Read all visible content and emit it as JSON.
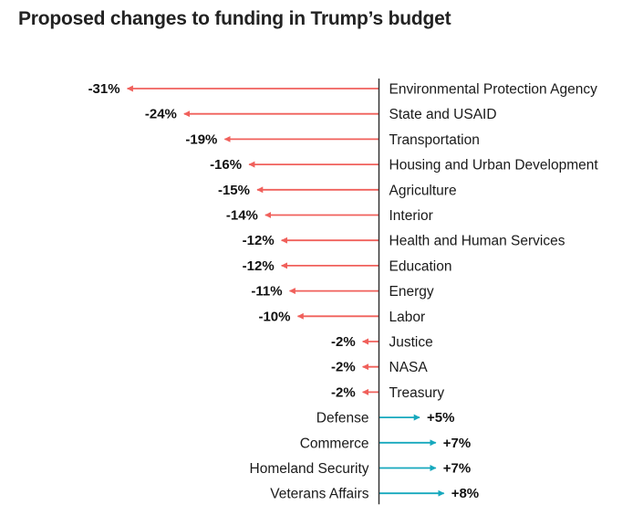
{
  "chart_data": {
    "type": "bar",
    "orientation": "horizontal-arrows",
    "title": "Proposed changes to funding in Trump’s budget",
    "unit": "%",
    "categories": [
      "Environmental Protection Agency",
      "State and USAID",
      "Transportation",
      "Housing and Urban Development",
      "Agriculture",
      "Interior",
      "Health and Human Services",
      "Education",
      "Energy",
      "Labor",
      "Justice",
      "NASA",
      "Treasury",
      "Defense",
      "Commerce",
      "Homeland Security",
      "Veterans Affairs"
    ],
    "values": [
      -31,
      -24,
      -19,
      -16,
      -15,
      -14,
      -12,
      -12,
      -11,
      -10,
      -2,
      -2,
      -2,
      5,
      7,
      7,
      8
    ],
    "labels": [
      "-31%",
      "-24%",
      "-19%",
      "-16%",
      "-15%",
      "-14%",
      "-12%",
      "-12%",
      "-11%",
      "-10%",
      "-2%",
      "-2%",
      "-2%",
      "+5%",
      "+7%",
      "+7%",
      "+8%"
    ],
    "colors": {
      "negative": "#f0605b",
      "positive": "#16a8bd",
      "axis": "#333333"
    },
    "xlabel": "",
    "ylabel": "",
    "grid": false,
    "legend": "none"
  }
}
